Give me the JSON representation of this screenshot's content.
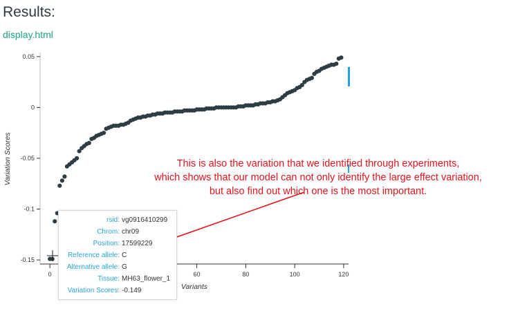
{
  "page": {
    "title": "Results:",
    "file_link": "display.html"
  },
  "chart_data": {
    "type": "scatter",
    "xlabel": "Variants",
    "ylabel": "Variation Scores",
    "xlim": [
      -4,
      122
    ],
    "ylim": [
      -0.154,
      0.054
    ],
    "x_ticks": [
      0,
      20,
      40,
      60,
      80,
      100,
      120
    ],
    "y_ticks": [
      0.05,
      0,
      -0.05,
      -0.1,
      -0.15
    ],
    "x_tick_labels": [
      "0",
      "20",
      "40",
      "60",
      "80",
      "100",
      "120"
    ],
    "y_tick_labels": [
      "0.05",
      "0",
      "-0.05",
      "-0.1",
      "-0.15"
    ],
    "marker_color": "#2e3d45",
    "x": [
      0,
      1,
      2,
      3,
      4,
      5,
      6,
      7,
      8,
      9,
      10,
      11,
      12,
      13,
      14,
      15,
      16,
      17,
      18,
      19,
      20,
      21,
      22,
      23,
      24,
      25,
      26,
      27,
      28,
      29,
      30,
      31,
      32,
      33,
      34,
      35,
      36,
      37,
      38,
      39,
      40,
      41,
      42,
      43,
      44,
      45,
      46,
      47,
      48,
      49,
      50,
      51,
      52,
      53,
      54,
      55,
      56,
      57,
      58,
      59,
      60,
      61,
      62,
      63,
      64,
      65,
      66,
      67,
      68,
      69,
      70,
      71,
      72,
      73,
      74,
      75,
      76,
      77,
      78,
      79,
      80,
      81,
      82,
      83,
      84,
      85,
      86,
      87,
      88,
      89,
      90,
      91,
      92,
      93,
      94,
      95,
      96,
      97,
      98,
      99,
      100,
      101,
      102,
      103,
      104,
      105,
      106,
      107,
      108,
      109,
      110,
      111,
      112,
      113,
      114,
      115,
      116,
      117,
      118,
      119
    ],
    "y": [
      -0.149,
      -0.149,
      -0.112,
      -0.104,
      -0.077,
      -0.072,
      -0.068,
      -0.058,
      -0.056,
      -0.054,
      -0.052,
      -0.05,
      -0.043,
      -0.04,
      -0.038,
      -0.036,
      -0.035,
      -0.031,
      -0.03,
      -0.028,
      -0.027,
      -0.026,
      -0.025,
      -0.021,
      -0.02,
      -0.019,
      -0.018,
      -0.018,
      -0.018,
      -0.017,
      -0.017,
      -0.016,
      -0.015,
      -0.013,
      -0.012,
      -0.011,
      -0.01,
      -0.01,
      -0.009,
      -0.009,
      -0.008,
      -0.008,
      -0.007,
      -0.007,
      -0.006,
      -0.006,
      -0.006,
      -0.005,
      -0.005,
      -0.005,
      -0.005,
      -0.004,
      -0.004,
      -0.004,
      -0.004,
      -0.003,
      -0.003,
      -0.003,
      -0.003,
      -0.003,
      -0.002,
      -0.002,
      -0.002,
      -0.002,
      -0.001,
      -0.001,
      -0.001,
      -0.001,
      0.0,
      0.0,
      0.0,
      0.0,
      0.0,
      0.0,
      0.0,
      0.0,
      0.0,
      0.001,
      0.001,
      0.001,
      0.002,
      0.002,
      0.002,
      0.002,
      0.003,
      0.003,
      0.004,
      0.004,
      0.004,
      0.005,
      0.005,
      0.006,
      0.006,
      0.007,
      0.008,
      0.01,
      0.012,
      0.014,
      0.015,
      0.016,
      0.017,
      0.019,
      0.02,
      0.022,
      0.025,
      0.027,
      0.028,
      0.029,
      0.033,
      0.035,
      0.036,
      0.038,
      0.039,
      0.04,
      0.041,
      0.042,
      0.042,
      0.043,
      0.048,
      0.049
    ]
  },
  "tooltip": {
    "rows": [
      {
        "label": "rsid:",
        "value": "vg0916410299"
      },
      {
        "label": "Chrom:",
        "value": "chr09"
      },
      {
        "label": "Position:",
        "value": "17599229"
      },
      {
        "label": "Reference allele:",
        "value": "C"
      },
      {
        "label": "Alternative allele:",
        "value": "G"
      },
      {
        "label": "Tissue:",
        "value": "MH63_flower_1"
      },
      {
        "label": "Variation Scores:",
        "value": "-0.149"
      }
    ]
  },
  "annotation": {
    "color": "#e8141b",
    "lines": [
      "This is also the variation that we identified through experiments,",
      "which shows that our model can not only identify the large effect variation,",
      "but also find out which one is the most important."
    ]
  }
}
